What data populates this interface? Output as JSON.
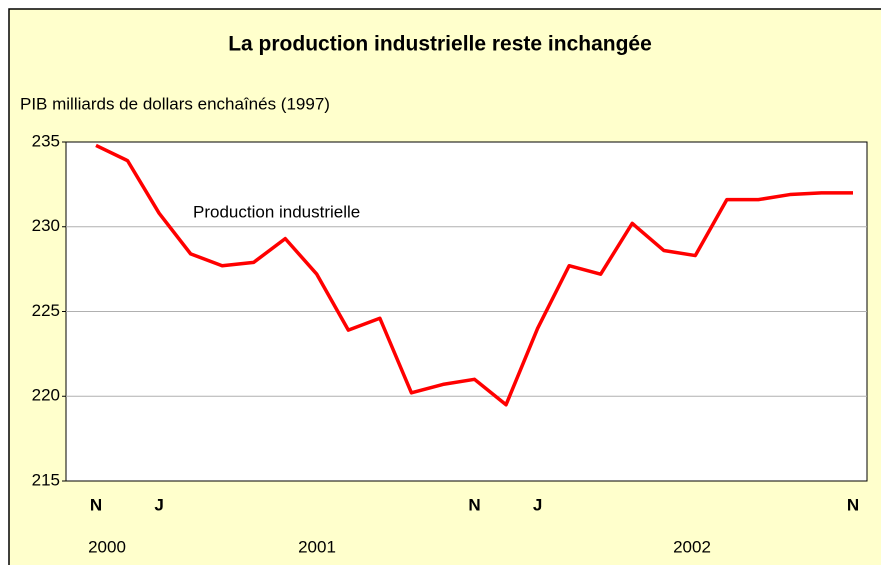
{
  "chart_data": {
    "type": "line",
    "title": "La production industrielle reste inchangée",
    "y_label": "PIB milliards de dollars enchaînés (1997)",
    "annotation": "Production industrielle",
    "categories": [
      "N",
      null,
      "J",
      null,
      null,
      null,
      null,
      null,
      null,
      null,
      null,
      null,
      "N",
      null,
      "J",
      null,
      null,
      null,
      null,
      null,
      null,
      null,
      null,
      null,
      "N"
    ],
    "year_labels": [
      "2000",
      "2001",
      "2002"
    ],
    "series": [
      {
        "name": "Production industrielle",
        "color": "#ff0000",
        "values": [
          234.8,
          233.9,
          230.8,
          228.4,
          227.7,
          227.9,
          229.3,
          227.2,
          223.9,
          224.6,
          220.2,
          220.7,
          221.0,
          219.5,
          224.0,
          227.7,
          227.2,
          230.2,
          228.6,
          228.3,
          231.6,
          231.6,
          231.9,
          232.0,
          232.0
        ]
      }
    ],
    "ylim": [
      215,
      235
    ],
    "yticks": [
      215,
      220,
      225,
      230,
      235
    ],
    "grid": true
  }
}
